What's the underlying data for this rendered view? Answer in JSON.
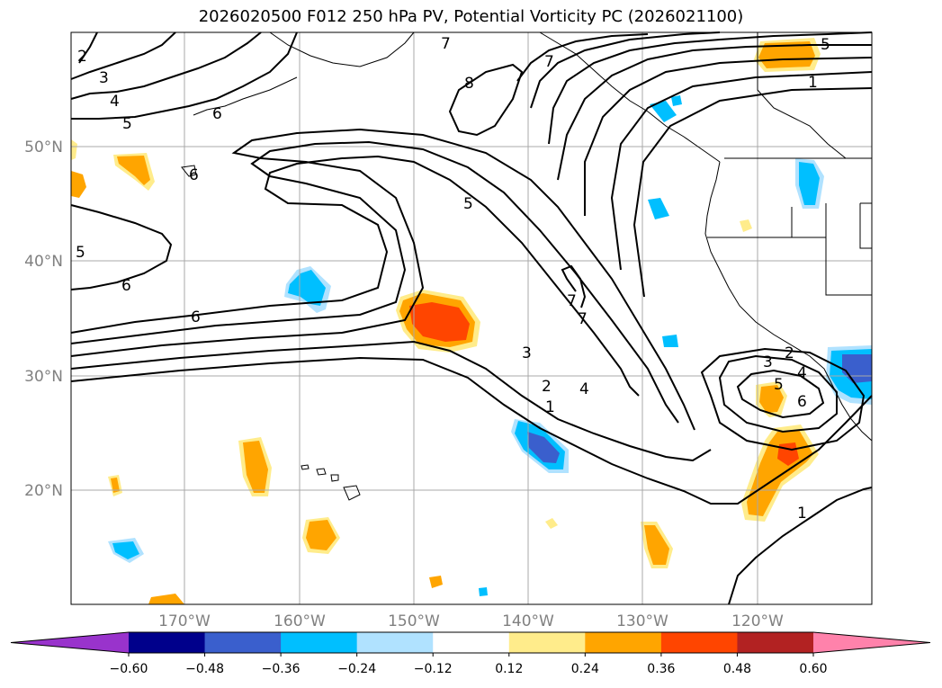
{
  "title": "2026020500 F012 250 hPa PV, Potential Vorticity PC (2026021100)",
  "longitudes": [
    "170°W",
    "160°W",
    "150°W",
    "140°W",
    "130°W",
    "120°W"
  ],
  "latitudes": [
    "50°N",
    "40°N",
    "30°N",
    "20°N"
  ],
  "colorbar": {
    "colors": [
      "#9933cc",
      "#00008b",
      "#3a5fcd",
      "#00bfff",
      "#b0e2ff",
      "#ffffff",
      "#ffec8b",
      "#ffa500",
      "#ff4500",
      "#b22222",
      "#ff82ab"
    ],
    "ticks": [
      "−0.60",
      "−0.48",
      "−0.36",
      "−0.24",
      "−0.12",
      "0.12",
      "0.24",
      "0.36",
      "0.48",
      "0.60"
    ]
  },
  "contour_labels": [
    "7",
    "8",
    "7",
    "5",
    "1",
    "2",
    "3",
    "4",
    "5",
    "6",
    "6",
    "5",
    "6",
    "6",
    "5",
    "4",
    "3",
    "2",
    "1",
    "3",
    "2",
    "4",
    "5",
    "6",
    "7",
    "7",
    "1"
  ]
}
